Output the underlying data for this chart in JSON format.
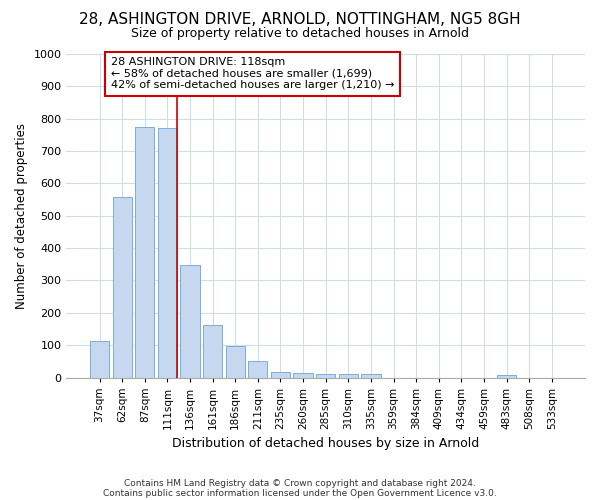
{
  "title1": "28, ASHINGTON DRIVE, ARNOLD, NOTTINGHAM, NG5 8GH",
  "title2": "Size of property relative to detached houses in Arnold",
  "xlabel": "Distribution of detached houses by size in Arnold",
  "ylabel": "Number of detached properties",
  "categories": [
    "37sqm",
    "62sqm",
    "87sqm",
    "111sqm",
    "136sqm",
    "161sqm",
    "186sqm",
    "211sqm",
    "235sqm",
    "260sqm",
    "285sqm",
    "310sqm",
    "335sqm",
    "359sqm",
    "384sqm",
    "409sqm",
    "434sqm",
    "459sqm",
    "483sqm",
    "508sqm",
    "533sqm"
  ],
  "values": [
    112,
    558,
    775,
    770,
    348,
    163,
    97,
    52,
    18,
    13,
    12,
    11,
    10,
    0,
    0,
    0,
    0,
    0,
    9,
    0,
    0
  ],
  "bar_color": "#c5d8f0",
  "bar_edgecolor": "#7aaed6",
  "vline_color": "#cc0000",
  "annotation_line1": "28 ASHINGTON DRIVE: 118sqm",
  "annotation_line2": "← 58% of detached houses are smaller (1,699)",
  "annotation_line3": "42% of semi-detached houses are larger (1,210) →",
  "annotation_boxcolor": "white",
  "annotation_edgecolor": "#cc0000",
  "ylim": [
    0,
    1000
  ],
  "yticks": [
    0,
    100,
    200,
    300,
    400,
    500,
    600,
    700,
    800,
    900,
    1000
  ],
  "footnote1": "Contains HM Land Registry data © Crown copyright and database right 2024.",
  "footnote2": "Contains public sector information licensed under the Open Government Licence v3.0.",
  "bg_color": "#ffffff",
  "plot_bg_color": "#ffffff",
  "grid_color": "#d0dce8"
}
